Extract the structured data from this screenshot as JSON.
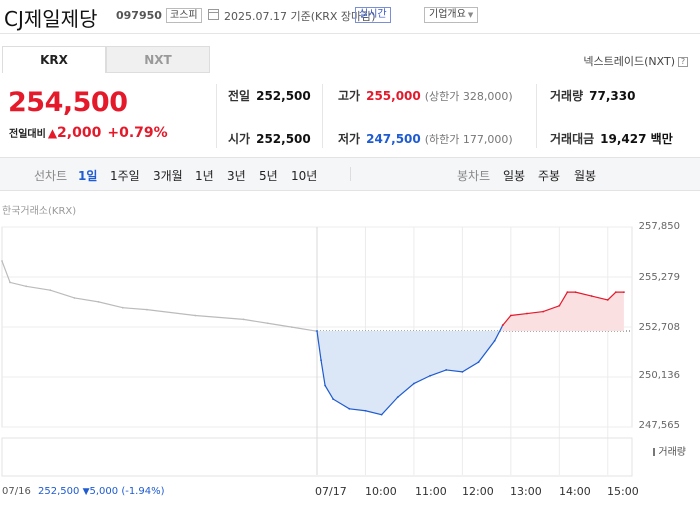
{
  "header": {
    "name": "CJ제일제당",
    "code": "097950",
    "market": "코스피",
    "date": "2025.07.17 기준(KRX 장마감)",
    "realtime": "실시간",
    "corp_overview": "기업개요"
  },
  "tabs": [
    "KRX",
    "NXT"
  ],
  "nextrade_link": "넥스트레이드(NXT)",
  "quote": {
    "price": "254,500",
    "change_label": "전일대비",
    "change_icon": "triangle-up-icon",
    "change": "2,000",
    "change_pct": "+0.79%"
  },
  "stats": {
    "prev_close": {
      "label": "전일",
      "value": "252,500"
    },
    "open": {
      "label": "시가",
      "value": "252,500"
    },
    "high": {
      "label": "고가",
      "value": "255,000",
      "sub": "(상한가 328,000)"
    },
    "low": {
      "label": "저가",
      "value": "247,500",
      "sub": "(하한가 177,000)"
    },
    "volume": {
      "label": "거래량",
      "value": "77,330"
    },
    "amount": {
      "label": "거래대금",
      "value": "19,427 백만"
    }
  },
  "controls": {
    "line_chart_label": "선차트",
    "periods": [
      "1일",
      "1주일",
      "3개월",
      "1년",
      "3년",
      "5년",
      "10년"
    ],
    "selected_period": "1일",
    "candle_label": "봉차트",
    "candles": [
      "일봉",
      "주봉",
      "월봉"
    ]
  },
  "source_label": "한국거래소(KRX)",
  "volume_legend": "거래량",
  "legend": {
    "prev_date": "07/16",
    "prev_close": "252,500",
    "change_icon": "triangle-down-icon",
    "change": "5,000",
    "change_pct": "(-1.94%)"
  },
  "colors": {
    "up": "#e4192a",
    "down": "#1f5bd1",
    "prev": "#bbbbbb",
    "up_fill": "#fbe0e2",
    "down_fill": "#dbe6f6"
  },
  "chart_data": {
    "type": "line",
    "y_ticks": [
      "257,850",
      "255,279",
      "252,708",
      "250,136",
      "247,565"
    ],
    "y_tick_values": [
      257850,
      255279,
      252708,
      250136,
      247565
    ],
    "ylim": [
      247565,
      257850
    ],
    "baseline": 252500,
    "x_labels": [
      "07/16",
      "07/17",
      "10:00",
      "11:00",
      "12:00",
      "13:00",
      "14:00",
      "15:00"
    ],
    "series": [
      {
        "values": [
          {
            "x": "07/16 09:00",
            "y": 256100
          },
          {
            "x": "07/16 09:10",
            "y": 255000
          },
          {
            "x": "07/16 09:30",
            "y": 254800
          },
          {
            "x": "07/16 10:00",
            "y": 254600
          },
          {
            "x": "07/16 10:30",
            "y": 254200
          },
          {
            "x": "07/16 11:00",
            "y": 254000
          },
          {
            "x": "07/16 11:30",
            "y": 253700
          },
          {
            "x": "07/16 12:00",
            "y": 253600
          },
          {
            "x": "07/16 13:00",
            "y": 253300
          },
          {
            "x": "07/16 14:00",
            "y": 253100
          },
          {
            "x": "07/16 14:30",
            "y": 252900
          },
          {
            "x": "07/16 15:00",
            "y": 252700
          },
          {
            "x": "07/16 15:30",
            "y": 252500
          }
        ]
      },
      {
        "values": [
          {
            "x": "07/17 09:00",
            "y": 252500
          },
          {
            "x": "07/17 09:05",
            "y": 251000
          },
          {
            "x": "07/17 09:10",
            "y": 249700
          },
          {
            "x": "07/17 09:20",
            "y": 249000
          },
          {
            "x": "07/17 09:40",
            "y": 248500
          },
          {
            "x": "07/17 10:00",
            "y": 248400
          },
          {
            "x": "07/17 10:20",
            "y": 248200
          },
          {
            "x": "07/17 10:40",
            "y": 249100
          },
          {
            "x": "07/17 11:00",
            "y": 249800
          },
          {
            "x": "07/17 11:20",
            "y": 250200
          },
          {
            "x": "07/17 11:40",
            "y": 250500
          },
          {
            "x": "07/17 12:00",
            "y": 250400
          },
          {
            "x": "07/17 12:20",
            "y": 250900
          },
          {
            "x": "07/17 12:40",
            "y": 252000
          },
          {
            "x": "07/17 12:50",
            "y": 252800
          }
        ]
      },
      {
        "values": [
          {
            "x": "07/17 12:50",
            "y": 252800
          },
          {
            "x": "07/17 13:00",
            "y": 253300
          },
          {
            "x": "07/17 13:20",
            "y": 253400
          },
          {
            "x": "07/17 13:40",
            "y": 253500
          },
          {
            "x": "07/17 14:00",
            "y": 253800
          },
          {
            "x": "07/17 14:10",
            "y": 254500
          },
          {
            "x": "07/17 14:20",
            "y": 254500
          },
          {
            "x": "07/17 14:40",
            "y": 254300
          },
          {
            "x": "07/17 15:00",
            "y": 254100
          },
          {
            "x": "07/17 15:10",
            "y": 254500
          },
          {
            "x": "07/17 15:20",
            "y": 254500
          }
        ]
      }
    ]
  }
}
